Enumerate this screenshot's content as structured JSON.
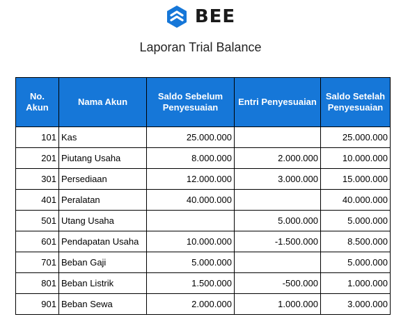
{
  "brand": {
    "name": "BEE",
    "color": "#1677d8"
  },
  "title": "Laporan Trial Balance",
  "table": {
    "columns": [
      [
        "No.",
        "Akun"
      ],
      [
        "Nama Akun"
      ],
      [
        "Saldo Sebelum",
        "Penyesuaian"
      ],
      [
        "Entri Penyesuaian"
      ],
      [
        "Saldo Setelah",
        "Penyesuaian"
      ]
    ],
    "rows": [
      [
        "101",
        "Kas",
        "25.000.000",
        "",
        "25.000.000"
      ],
      [
        "201",
        "Piutang Usaha",
        "8.000.000",
        "2.000.000",
        "10.000.000"
      ],
      [
        "301",
        "Persediaan",
        "12.000.000",
        "3.000.000",
        "15.000.000"
      ],
      [
        "401",
        "Peralatan",
        "40.000.000",
        "",
        "40.000.000"
      ],
      [
        "501",
        "Utang Usaha",
        "",
        "5.000.000",
        "5.000.000"
      ],
      [
        "601",
        "Pendapatan Usaha",
        "10.000.000",
        "-1.500.000",
        "8.500.000"
      ],
      [
        "701",
        "Beban Gaji",
        "5.000.000",
        "",
        "5.000.000"
      ],
      [
        "801",
        "Beban Listrik",
        "1.500.000",
        "-500.000",
        "1.000.000"
      ],
      [
        "901",
        "Beban Sewa",
        "2.000.000",
        "1.000.000",
        "3.000.000"
      ]
    ]
  }
}
